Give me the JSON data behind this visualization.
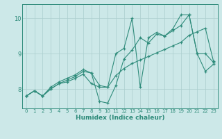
{
  "xlabel": "Humidex (Indice chaleur)",
  "x_values": [
    0,
    1,
    2,
    3,
    4,
    5,
    6,
    7,
    8,
    9,
    10,
    11,
    12,
    13,
    14,
    15,
    16,
    17,
    18,
    19,
    20,
    21,
    22,
    23
  ],
  "line1": [
    7.8,
    7.95,
    7.8,
    8.05,
    8.2,
    8.3,
    8.4,
    8.55,
    8.45,
    8.1,
    8.05,
    9.0,
    9.15,
    10.0,
    8.05,
    9.45,
    9.6,
    9.5,
    9.7,
    10.1,
    10.1,
    9.0,
    9.0,
    8.75
  ],
  "line2": [
    7.8,
    7.95,
    7.8,
    8.0,
    8.15,
    8.25,
    8.35,
    8.5,
    8.45,
    7.65,
    7.6,
    8.1,
    8.85,
    9.1,
    9.45,
    9.3,
    9.55,
    9.5,
    9.65,
    9.8,
    10.1,
    9.0,
    8.5,
    8.7
  ],
  "line3": [
    7.8,
    7.95,
    7.8,
    8.0,
    8.15,
    8.2,
    8.3,
    8.42,
    8.15,
    8.05,
    8.05,
    8.38,
    8.58,
    8.72,
    8.82,
    8.92,
    9.02,
    9.12,
    9.22,
    9.32,
    9.52,
    9.62,
    9.72,
    8.78
  ],
  "line_color": "#2e8b7a",
  "bg_color": "#cce8e8",
  "grid_color": "#aacece",
  "ylim": [
    7.45,
    10.4
  ],
  "yticks": [
    8,
    9,
    10
  ],
  "xticks": [
    0,
    1,
    2,
    3,
    4,
    5,
    6,
    7,
    8,
    9,
    10,
    11,
    12,
    13,
    14,
    15,
    16,
    17,
    18,
    19,
    20,
    21,
    22,
    23
  ]
}
